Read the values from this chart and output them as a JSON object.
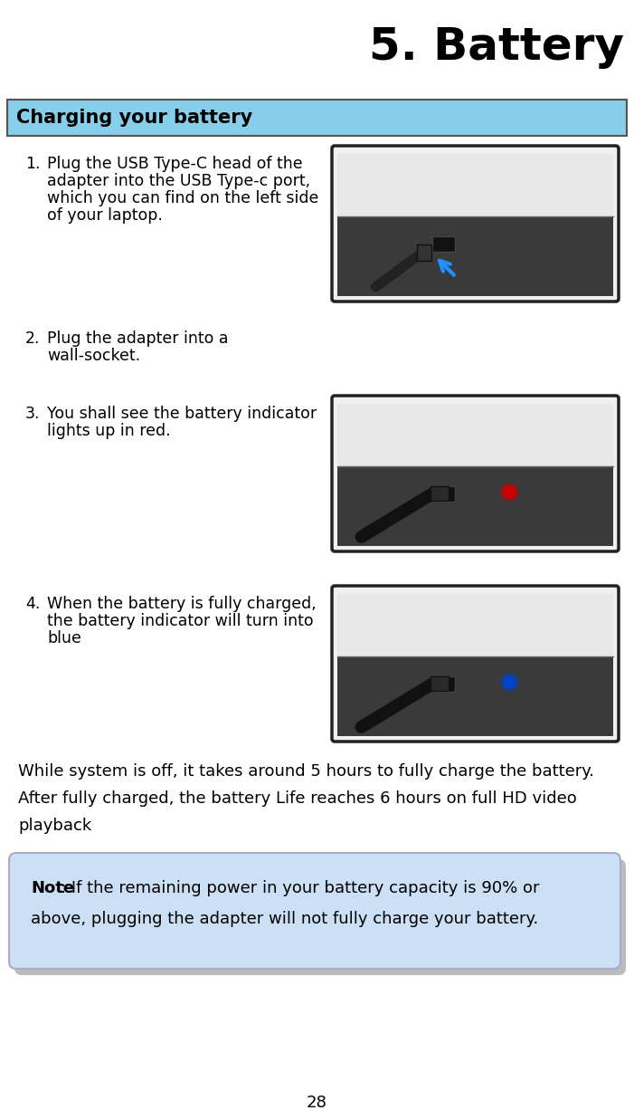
{
  "title": "5. Battery",
  "section_header": "Charging your battery",
  "section_header_bg": "#87CEEB",
  "section_header_border": "#555555",
  "page_bg": "#ffffff",
  "steps": [
    {
      "number": "1.",
      "lines": [
        "Plug the USB Type-C head of the",
        "adapter into the USB Type-c port,",
        "which you can find on the left side",
        "of your laptop."
      ],
      "has_image": true
    },
    {
      "number": "2.",
      "lines": [
        "Plug the adapter into a",
        "wall-socket."
      ],
      "has_image": false
    },
    {
      "number": "3.",
      "lines": [
        "You shall see the battery indicator",
        "lights up in red."
      ],
      "has_image": true
    },
    {
      "number": "4.",
      "lines": [
        "When the battery is fully charged,",
        "the battery indicator will turn into",
        "blue"
      ],
      "has_image": true
    }
  ],
  "body_lines": [
    "While system is off, it takes around 5 hours to fully charge the battery.",
    "After fully charged, the battery Life reaches 6 hours on full HD video",
    "playback"
  ],
  "note_bold": "Note",
  "note_colon": ": If the remaining power in your battery capacity is 90% or",
  "note_line2": "above, plugging the adapter will not fully charge your battery.",
  "note_bg": "#cce0f5",
  "note_border": "#aaaacc",
  "shadow_color": "#bbbbbb",
  "page_number": "28",
  "title_fontsize": 36,
  "header_fontsize": 15,
  "step_fontsize": 12.5,
  "body_fontsize": 13,
  "note_fontsize": 13,
  "img1_indicator_color": "none",
  "img3_indicator_color": "#cc0000",
  "img4_indicator_color": "#0044cc"
}
